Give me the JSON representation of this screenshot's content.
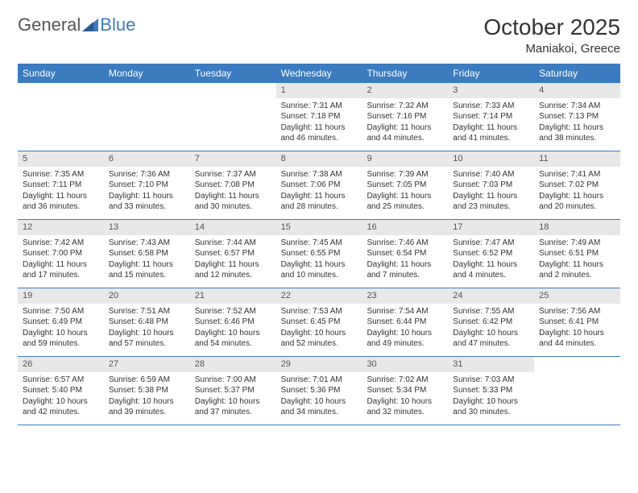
{
  "brand": {
    "text1": "General",
    "text2": "Blue"
  },
  "title": "October 2025",
  "location": "Maniakoi, Greece",
  "colors": {
    "header_bg": "#3b7bbf",
    "header_text": "#ffffff",
    "daynum_bg": "#e8e8e8",
    "border": "#3b7bbf",
    "body_text": "#333333",
    "logo_gray": "#555555",
    "logo_blue": "#3b7bbf",
    "background": "#ffffff"
  },
  "typography": {
    "title_fontsize": 28,
    "location_fontsize": 15,
    "header_fontsize": 12,
    "cell_fontsize": 10
  },
  "day_names": [
    "Sunday",
    "Monday",
    "Tuesday",
    "Wednesday",
    "Thursday",
    "Friday",
    "Saturday"
  ],
  "weeks": [
    [
      {
        "day": "",
        "sunrise": "",
        "sunset": "",
        "daylight": ""
      },
      {
        "day": "",
        "sunrise": "",
        "sunset": "",
        "daylight": ""
      },
      {
        "day": "",
        "sunrise": "",
        "sunset": "",
        "daylight": ""
      },
      {
        "day": "1",
        "sunrise": "Sunrise: 7:31 AM",
        "sunset": "Sunset: 7:18 PM",
        "daylight": "Daylight: 11 hours and 46 minutes."
      },
      {
        "day": "2",
        "sunrise": "Sunrise: 7:32 AM",
        "sunset": "Sunset: 7:16 PM",
        "daylight": "Daylight: 11 hours and 44 minutes."
      },
      {
        "day": "3",
        "sunrise": "Sunrise: 7:33 AM",
        "sunset": "Sunset: 7:14 PM",
        "daylight": "Daylight: 11 hours and 41 minutes."
      },
      {
        "day": "4",
        "sunrise": "Sunrise: 7:34 AM",
        "sunset": "Sunset: 7:13 PM",
        "daylight": "Daylight: 11 hours and 38 minutes."
      }
    ],
    [
      {
        "day": "5",
        "sunrise": "Sunrise: 7:35 AM",
        "sunset": "Sunset: 7:11 PM",
        "daylight": "Daylight: 11 hours and 36 minutes."
      },
      {
        "day": "6",
        "sunrise": "Sunrise: 7:36 AM",
        "sunset": "Sunset: 7:10 PM",
        "daylight": "Daylight: 11 hours and 33 minutes."
      },
      {
        "day": "7",
        "sunrise": "Sunrise: 7:37 AM",
        "sunset": "Sunset: 7:08 PM",
        "daylight": "Daylight: 11 hours and 30 minutes."
      },
      {
        "day": "8",
        "sunrise": "Sunrise: 7:38 AM",
        "sunset": "Sunset: 7:06 PM",
        "daylight": "Daylight: 11 hours and 28 minutes."
      },
      {
        "day": "9",
        "sunrise": "Sunrise: 7:39 AM",
        "sunset": "Sunset: 7:05 PM",
        "daylight": "Daylight: 11 hours and 25 minutes."
      },
      {
        "day": "10",
        "sunrise": "Sunrise: 7:40 AM",
        "sunset": "Sunset: 7:03 PM",
        "daylight": "Daylight: 11 hours and 23 minutes."
      },
      {
        "day": "11",
        "sunrise": "Sunrise: 7:41 AM",
        "sunset": "Sunset: 7:02 PM",
        "daylight": "Daylight: 11 hours and 20 minutes."
      }
    ],
    [
      {
        "day": "12",
        "sunrise": "Sunrise: 7:42 AM",
        "sunset": "Sunset: 7:00 PM",
        "daylight": "Daylight: 11 hours and 17 minutes."
      },
      {
        "day": "13",
        "sunrise": "Sunrise: 7:43 AM",
        "sunset": "Sunset: 6:58 PM",
        "daylight": "Daylight: 11 hours and 15 minutes."
      },
      {
        "day": "14",
        "sunrise": "Sunrise: 7:44 AM",
        "sunset": "Sunset: 6:57 PM",
        "daylight": "Daylight: 11 hours and 12 minutes."
      },
      {
        "day": "15",
        "sunrise": "Sunrise: 7:45 AM",
        "sunset": "Sunset: 6:55 PM",
        "daylight": "Daylight: 11 hours and 10 minutes."
      },
      {
        "day": "16",
        "sunrise": "Sunrise: 7:46 AM",
        "sunset": "Sunset: 6:54 PM",
        "daylight": "Daylight: 11 hours and 7 minutes."
      },
      {
        "day": "17",
        "sunrise": "Sunrise: 7:47 AM",
        "sunset": "Sunset: 6:52 PM",
        "daylight": "Daylight: 11 hours and 4 minutes."
      },
      {
        "day": "18",
        "sunrise": "Sunrise: 7:49 AM",
        "sunset": "Sunset: 6:51 PM",
        "daylight": "Daylight: 11 hours and 2 minutes."
      }
    ],
    [
      {
        "day": "19",
        "sunrise": "Sunrise: 7:50 AM",
        "sunset": "Sunset: 6:49 PM",
        "daylight": "Daylight: 10 hours and 59 minutes."
      },
      {
        "day": "20",
        "sunrise": "Sunrise: 7:51 AM",
        "sunset": "Sunset: 6:48 PM",
        "daylight": "Daylight: 10 hours and 57 minutes."
      },
      {
        "day": "21",
        "sunrise": "Sunrise: 7:52 AM",
        "sunset": "Sunset: 6:46 PM",
        "daylight": "Daylight: 10 hours and 54 minutes."
      },
      {
        "day": "22",
        "sunrise": "Sunrise: 7:53 AM",
        "sunset": "Sunset: 6:45 PM",
        "daylight": "Daylight: 10 hours and 52 minutes."
      },
      {
        "day": "23",
        "sunrise": "Sunrise: 7:54 AM",
        "sunset": "Sunset: 6:44 PM",
        "daylight": "Daylight: 10 hours and 49 minutes."
      },
      {
        "day": "24",
        "sunrise": "Sunrise: 7:55 AM",
        "sunset": "Sunset: 6:42 PM",
        "daylight": "Daylight: 10 hours and 47 minutes."
      },
      {
        "day": "25",
        "sunrise": "Sunrise: 7:56 AM",
        "sunset": "Sunset: 6:41 PM",
        "daylight": "Daylight: 10 hours and 44 minutes."
      }
    ],
    [
      {
        "day": "26",
        "sunrise": "Sunrise: 6:57 AM",
        "sunset": "Sunset: 5:40 PM",
        "daylight": "Daylight: 10 hours and 42 minutes."
      },
      {
        "day": "27",
        "sunrise": "Sunrise: 6:59 AM",
        "sunset": "Sunset: 5:38 PM",
        "daylight": "Daylight: 10 hours and 39 minutes."
      },
      {
        "day": "28",
        "sunrise": "Sunrise: 7:00 AM",
        "sunset": "Sunset: 5:37 PM",
        "daylight": "Daylight: 10 hours and 37 minutes."
      },
      {
        "day": "29",
        "sunrise": "Sunrise: 7:01 AM",
        "sunset": "Sunset: 5:36 PM",
        "daylight": "Daylight: 10 hours and 34 minutes."
      },
      {
        "day": "30",
        "sunrise": "Sunrise: 7:02 AM",
        "sunset": "Sunset: 5:34 PM",
        "daylight": "Daylight: 10 hours and 32 minutes."
      },
      {
        "day": "31",
        "sunrise": "Sunrise: 7:03 AM",
        "sunset": "Sunset: 5:33 PM",
        "daylight": "Daylight: 10 hours and 30 minutes."
      },
      {
        "day": "",
        "sunrise": "",
        "sunset": "",
        "daylight": ""
      }
    ]
  ]
}
